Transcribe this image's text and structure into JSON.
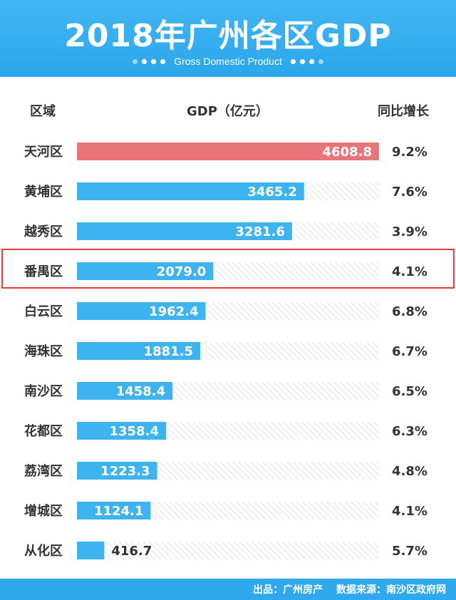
{
  "header": {
    "title": "2018年广州各区GDP",
    "subtitle": "Gross Domestic Product"
  },
  "columns": {
    "district": "区域",
    "gdp": "GDP（亿元）",
    "growth": "同比增长"
  },
  "highlight_category": "番禺区",
  "colors": {
    "header_bg": "#2ba6ec",
    "bar_default": "#3db3ef",
    "bar_top": "#e8757a",
    "highlight_border": "#e53b3b",
    "hatch": "#d8d8d8"
  },
  "chart_data": {
    "type": "bar",
    "orientation": "horizontal",
    "categories": [
      "天河区",
      "黄埔区",
      "越秀区",
      "番禺区",
      "白云区",
      "海珠区",
      "南沙区",
      "花都区",
      "荔湾区",
      "增城区",
      "从化区"
    ],
    "values": [
      4608.8,
      3465.2,
      3281.6,
      2079.0,
      1962.4,
      1881.5,
      1458.4,
      1358.4,
      1223.3,
      1124.1,
      416.7
    ],
    "value_labels": [
      "4608.8",
      "3465.2",
      "3281.6",
      "2079.0",
      "1962.4",
      "1881.5",
      "1458.4",
      "1358.4",
      "1223.3",
      "1124.1",
      "416.7"
    ],
    "growth": [
      "9.2%",
      "7.6%",
      "3.9%",
      "4.1%",
      "6.8%",
      "6.7%",
      "6.5%",
      "6.3%",
      "4.8%",
      "4.1%",
      "5.7%"
    ],
    "xlim": [
      0,
      4608.8
    ]
  },
  "footer": {
    "source_by": "出品：广州房产",
    "data_source": "数据来源：南沙区政府网"
  }
}
